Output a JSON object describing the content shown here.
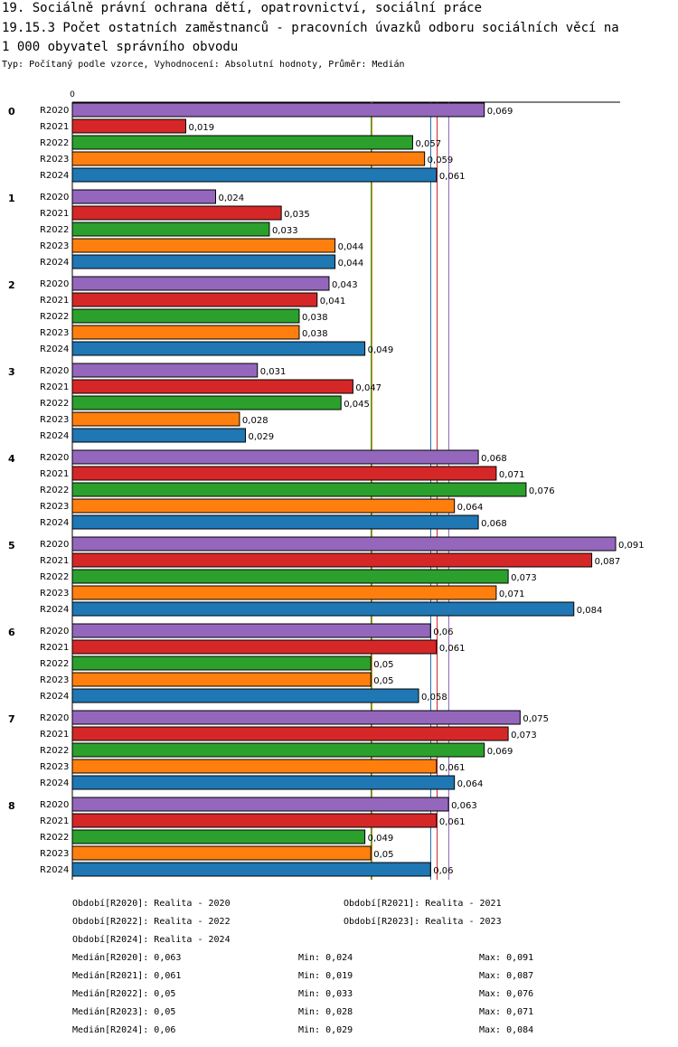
{
  "header": {
    "line1": "19. Sociálně právní ochrana dětí, opatrovnictví, sociální práce",
    "line2": "19.15.3 Počet ostatních zaměstnanců - pracovních úvazků odboru sociálních věcí na",
    "line3": " 1 000 obyvatel správního obvodu",
    "subtitle": "Typ: Počítaný podle vzorce, Vyhodnocení: Absolutní hodnoty, Průměr: Medián"
  },
  "chart_data": {
    "type": "bar",
    "orientation": "horizontal",
    "axis_label_zero": "0",
    "xlim": [
      0,
      0.091
    ],
    "categories": [
      "0",
      "1",
      "2",
      "3",
      "4",
      "5",
      "6",
      "7",
      "8"
    ],
    "series": [
      {
        "name": "R2020",
        "color": "#9467bd",
        "values": [
          0.069,
          0.024,
          0.043,
          0.031,
          0.068,
          0.091,
          0.06,
          0.075,
          0.063
        ],
        "labels": [
          "0,069",
          "0,024",
          "0,043",
          "0,031",
          "0,068",
          "0,091",
          "0,06",
          "0,075",
          "0,063"
        ]
      },
      {
        "name": "R2021",
        "color": "#d62728",
        "values": [
          0.019,
          0.035,
          0.041,
          0.047,
          0.071,
          0.087,
          0.061,
          0.073,
          0.061
        ],
        "labels": [
          "0,019",
          "0,035",
          "0,041",
          "0,047",
          "0,071",
          "0,087",
          "0,061",
          "0,073",
          "0,061"
        ]
      },
      {
        "name": "R2022",
        "color": "#2ca02c",
        "values": [
          0.057,
          0.033,
          0.038,
          0.045,
          0.076,
          0.073,
          0.05,
          0.069,
          0.049
        ],
        "labels": [
          "0,057",
          "0,033",
          "0,038",
          "0,045",
          "0,076",
          "0,073",
          "0,05",
          "0,069",
          "0,049"
        ]
      },
      {
        "name": "R2023",
        "color": "#ff7f0e",
        "values": [
          0.059,
          0.044,
          0.038,
          0.028,
          0.064,
          0.071,
          0.05,
          0.061,
          0.05
        ],
        "labels": [
          "0,059",
          "0,044",
          "0,038",
          "0,028",
          "0,064",
          "0,071",
          "0,05",
          "0,061",
          "0,05"
        ]
      },
      {
        "name": "R2024",
        "color": "#1f77b4",
        "values": [
          0.061,
          0.044,
          0.049,
          0.029,
          0.068,
          0.084,
          0.058,
          0.064,
          0.06
        ],
        "labels": [
          "0,061",
          "0,044",
          "0,049",
          "0,029",
          "0,068",
          "0,084",
          "0,058",
          "0,064",
          "0,06"
        ]
      }
    ],
    "reference_lines": [
      {
        "series": "R2020",
        "value": 0.063,
        "color": "#9467bd"
      },
      {
        "series": "R2021",
        "value": 0.061,
        "color": "#d62728"
      },
      {
        "series": "R2022",
        "value": 0.05,
        "color": "#2ca02c"
      },
      {
        "series": "R2023",
        "value": 0.05,
        "color": "#ff7f0e"
      },
      {
        "series": "R2024",
        "value": 0.06,
        "color": "#1f77b4"
      }
    ]
  },
  "legend": {
    "periods": [
      "Období[R2020]: Realita - 2020",
      "Období[R2021]: Realita - 2021",
      "Období[R2022]: Realita - 2022",
      "Období[R2023]: Realita - 2023",
      "Období[R2024]: Realita - 2024"
    ],
    "stats": [
      {
        "median": "Medián[R2020]: 0,063",
        "min": "Min: 0,024",
        "max": "Max: 0,091"
      },
      {
        "median": "Medián[R2021]: 0,061",
        "min": "Min: 0,019",
        "max": "Max: 0,087"
      },
      {
        "median": "Medián[R2022]: 0,05",
        "min": "Min: 0,033",
        "max": "Max: 0,076"
      },
      {
        "median": "Medián[R2023]: 0,05",
        "min": "Min: 0,028",
        "max": "Max: 0,071"
      },
      {
        "median": "Medián[R2024]: 0,06",
        "min": "Min: 0,029",
        "max": "Max: 0,084"
      }
    ]
  }
}
